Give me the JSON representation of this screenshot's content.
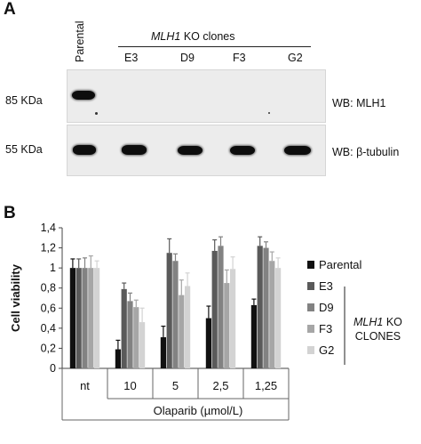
{
  "panel_a": {
    "letter": "A",
    "parental_label": "Parental",
    "clones_header_gene": "MLH1",
    "clones_header_rest": " KO clones",
    "lanes": [
      "E3",
      "D9",
      "F3",
      "G2"
    ],
    "mw_top": "85 KDa",
    "mw_bottom": "55 KDa",
    "wb_top": "WB: MLH1",
    "wb_bottom": "WB: β-tubulin"
  },
  "panel_b": {
    "letter": "B",
    "legend_group_gene": "MLH1",
    "legend_group_rest": " KO",
    "legend_group_line2": "CLONES"
  },
  "chart_data": {
    "type": "bar",
    "ylabel": "Cell viability",
    "xlabel": "Olaparib (µmol/L)",
    "categories": [
      "nt",
      "10",
      "5",
      "2,5",
      "1,25"
    ],
    "ylim": [
      0,
      1.4
    ],
    "yticks": [
      "0",
      "0,2",
      "0,4",
      "0,6",
      "0,8",
      "1",
      "1,2",
      "1,4"
    ],
    "grid": false,
    "legend_position": "right",
    "series": [
      {
        "name": "Parental",
        "color": "#111111",
        "values": [
          1.0,
          0.19,
          0.31,
          0.5,
          0.63
        ],
        "errors": [
          0.09,
          0.09,
          0.11,
          0.12,
          0.06
        ]
      },
      {
        "name": "E3",
        "color": "#5a5a5a",
        "values": [
          1.0,
          0.79,
          1.15,
          1.17,
          1.22
        ],
        "errors": [
          0.09,
          0.06,
          0.14,
          0.11,
          0.09
        ]
      },
      {
        "name": "D9",
        "color": "#828282",
        "values": [
          1.0,
          0.67,
          1.07,
          1.22,
          1.2
        ],
        "errors": [
          0.1,
          0.08,
          0.07,
          0.09,
          0.06
        ]
      },
      {
        "name": "F3",
        "color": "#a6a6a6",
        "values": [
          1.0,
          0.61,
          0.73,
          0.85,
          1.07
        ],
        "errors": [
          0.12,
          0.07,
          0.15,
          0.13,
          0.09
        ]
      },
      {
        "name": "G2",
        "color": "#d3d3d3",
        "values": [
          1.0,
          0.46,
          0.82,
          0.99,
          1.0
        ],
        "errors": [
          0.07,
          0.14,
          0.13,
          0.12,
          0.1
        ]
      }
    ]
  }
}
